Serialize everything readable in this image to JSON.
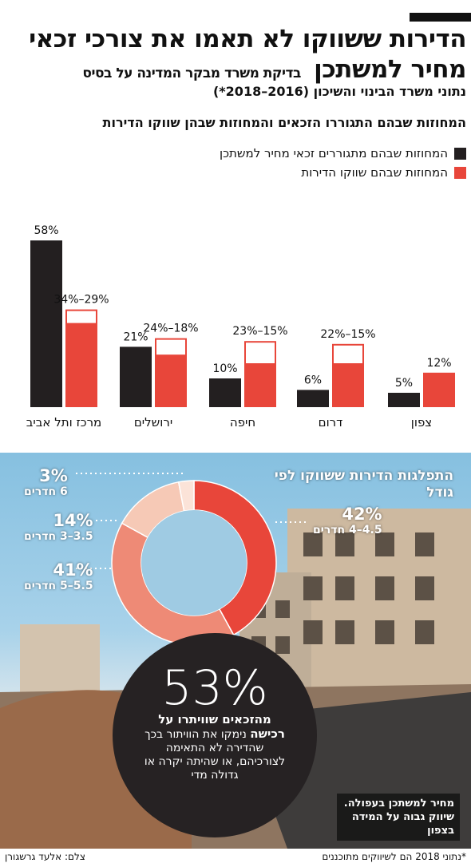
{
  "header": {
    "title_line1": "הדירות ששווקו לא תאמו את צורכי זכאי",
    "title_line2": "מחיר למשתכן",
    "title_line2_small": "בדיקת משרד מבקר המדינה על בסיס",
    "subtitle": "נתוני משרד הבינוי והשיכון (2016–2018*)"
  },
  "chart_heading": "המחוזות שבהם התגוררו הזכאים והמחוזות שבהן שווקו הדירות",
  "colors": {
    "black": "#231f20",
    "red": "#e8463a",
    "salmon": "#ee8a76",
    "light": "#f6c9b6"
  },
  "chart_data": [
    {
      "type": "bar",
      "categories": [
        "מרכז ותל אביב",
        "ירושלים",
        "חיפה",
        "דרום",
        "צפון"
      ],
      "legend_position": "top-right",
      "series": [
        {
          "name": "המחוזות שבהם מתגוררים זכאי מחיר למשתכן",
          "values": [
            58,
            21,
            10,
            6,
            5
          ],
          "labels": [
            "58%",
            "21%",
            "10%",
            "6%",
            "5%"
          ]
        },
        {
          "name": "המחוזות שבהם שווקו הדירות",
          "min": [
            29,
            18,
            15,
            15,
            12
          ],
          "max": [
            34,
            24,
            23,
            22,
            12
          ],
          "labels": [
            "34%–29%",
            "24%–18%",
            "23%–15%",
            "22%–15%",
            "12%"
          ]
        }
      ],
      "ylim": [
        0,
        60
      ]
    },
    {
      "type": "pie",
      "title": "התפלגות הדירות ששווקו לפי גודל",
      "slices": [
        {
          "pct_label": "42%",
          "rooms": "4.5–4 חדרים",
          "value": 42,
          "color": "#e8463a"
        },
        {
          "pct_label": "41%",
          "rooms": "5.5–5 חדרים",
          "value": 41,
          "color": "#ee8a76"
        },
        {
          "pct_label": "14%",
          "rooms": "3.5–3 חדרים",
          "value": 14,
          "color": "#f6c9b6"
        },
        {
          "pct_label": "3%",
          "rooms": "6 חדרים",
          "value": 3,
          "color": "#fbe3d8"
        }
      ]
    }
  ],
  "circle": {
    "number": "53%",
    "bold": "מהזכאים שוויתרו על רכישה",
    "text": "נימקו את הוויתור בכך שהדירה לא התאימה לצורכיהם, או שהיתה יקרה או גדולה מדי"
  },
  "photo_caption": "מחיר למשתכן בעפולה. שיווק גבוה על המידה בצפון",
  "footnote": "*נתוני 2018 הם לשיווקים מתוכננים",
  "credit": "צלם: אלעד גרשגורן"
}
